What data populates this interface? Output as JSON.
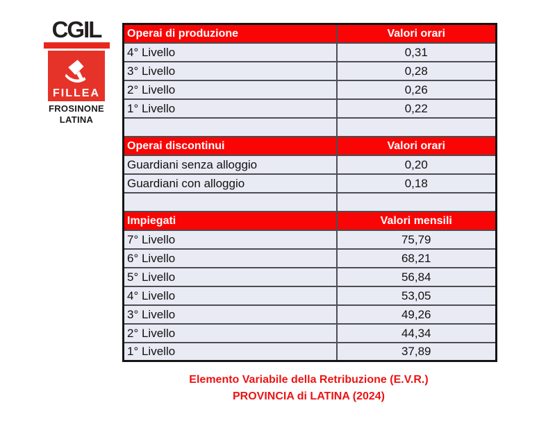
{
  "logo": {
    "cgil": "CGIL",
    "fillea": "FILLEA",
    "region_line1": "FROSINONE",
    "region_line2": "LATINA",
    "emblem_icon": "fillea-trowel-swoosh",
    "logo_red": "#e6332a",
    "bar_red": "#e8281e"
  },
  "table": {
    "sections": [
      {
        "header": {
          "label": "Operai di produzione",
          "value_label": "Valori orari"
        },
        "rows": [
          {
            "label": "4° Livello",
            "value": "0,31"
          },
          {
            "label": "3° Livello",
            "value": "0,28"
          },
          {
            "label": "2° Livello",
            "value": "0,26"
          },
          {
            "label": "1° Livello",
            "value": "0,22"
          }
        ],
        "spacer_after": true
      },
      {
        "header": {
          "label": "Operai discontinui",
          "value_label": "Valori orari"
        },
        "rows": [
          {
            "label": "Guardiani senza alloggio",
            "value": "0,20"
          },
          {
            "label": "Guardiani con alloggio",
            "value": "0,18"
          }
        ],
        "spacer_after": true
      },
      {
        "header": {
          "label": "Impiegati",
          "value_label": "Valori mensili"
        },
        "rows": [
          {
            "label": "7° Livello",
            "value": "75,79"
          },
          {
            "label": "6° Livello",
            "value": "68,21"
          },
          {
            "label": "5° Livello",
            "value": "56,84"
          },
          {
            "label": "4° Livello",
            "value": "53,05"
          },
          {
            "label": "3° Livello",
            "value": "49,26"
          },
          {
            "label": "2° Livello",
            "value": "44,34"
          },
          {
            "label": "1° Livello",
            "value": "37,89"
          }
        ],
        "spacer_after": false
      }
    ],
    "header_red": "#fa0505",
    "row_bg": "#e9ebf4"
  },
  "caption": {
    "line1": "Elemento Variabile della Retribuzione (E.V.R.)",
    "line2": "PROVINCIA di LATINA (2024)",
    "caption_red": "#ec1313"
  }
}
